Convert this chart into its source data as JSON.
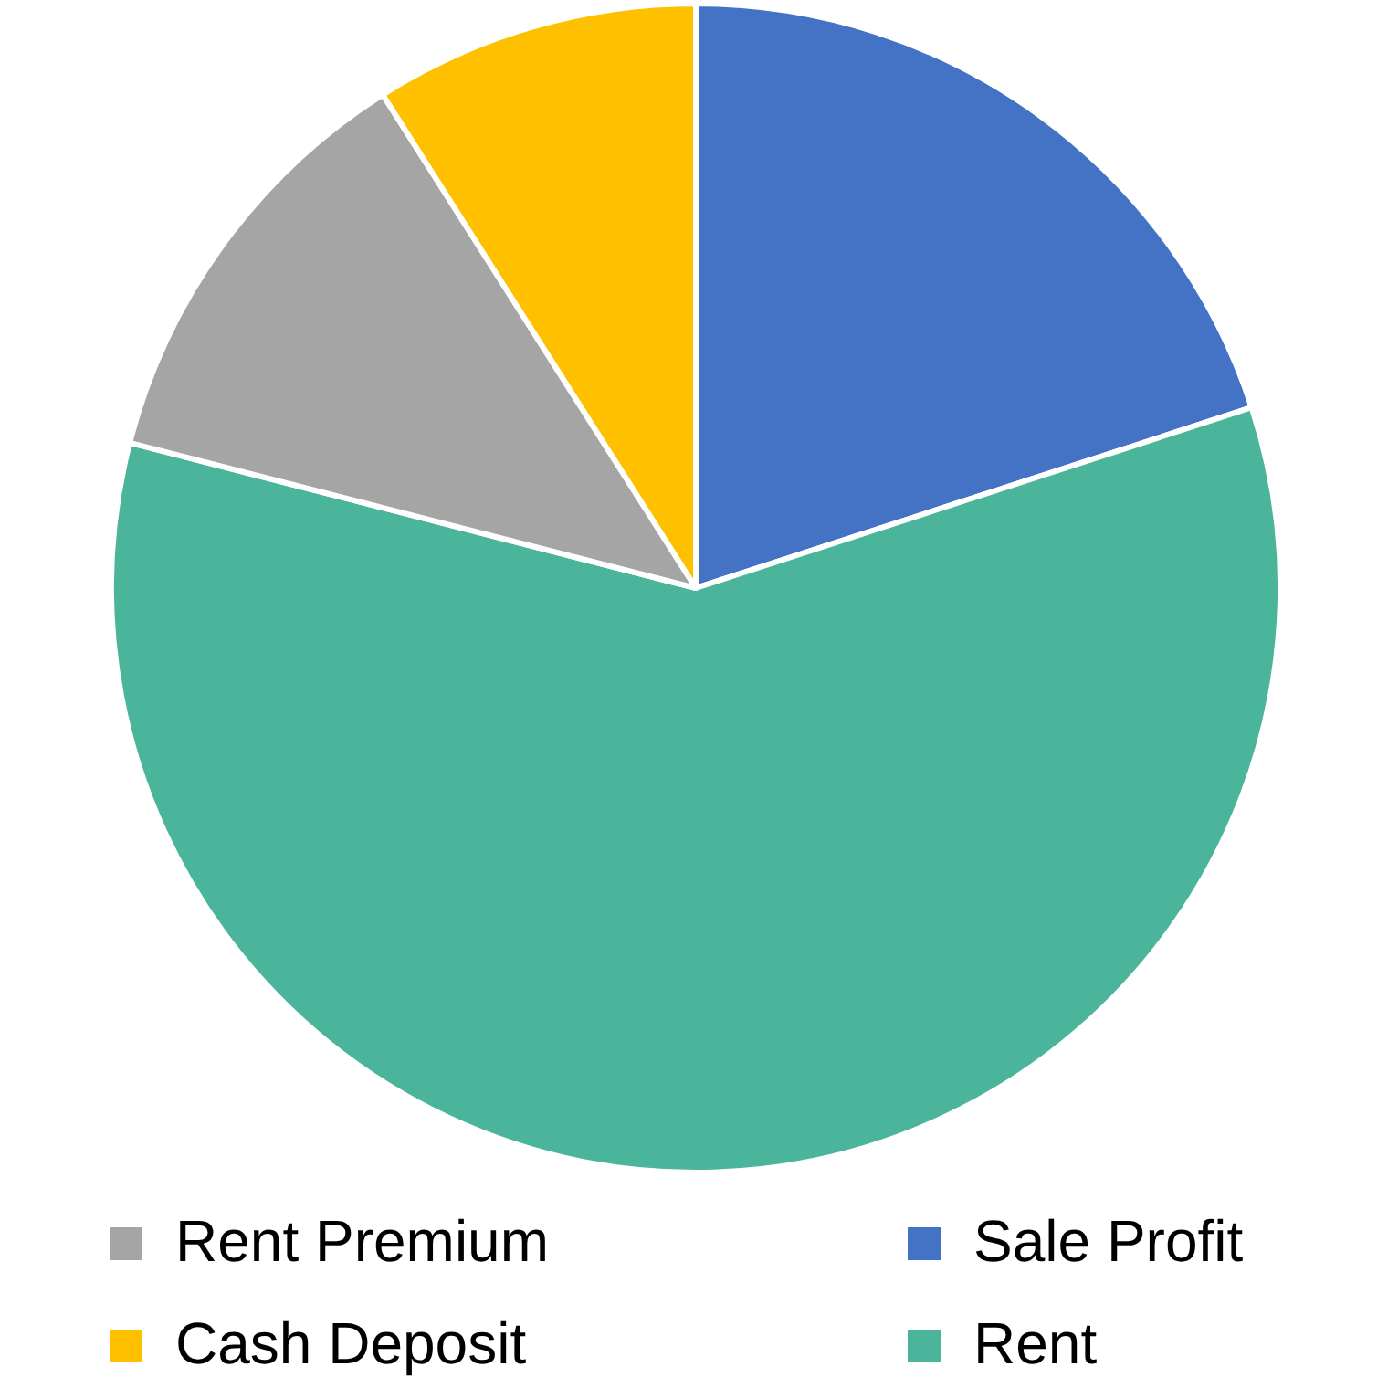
{
  "chart_data": {
    "type": "pie",
    "categories": [
      "Sale Profit",
      "Rent",
      "Rent Premium",
      "Cash Deposit"
    ],
    "values": [
      20,
      59,
      12,
      9
    ],
    "colors": [
      "#4472c4",
      "#4ab59a",
      "#a5a5a5",
      "#ffc000"
    ],
    "legend": "bottom"
  }
}
